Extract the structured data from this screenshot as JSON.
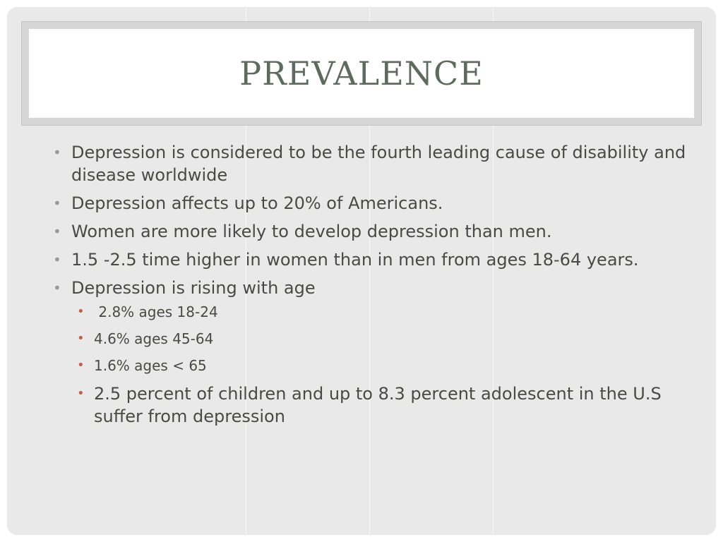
{
  "slide": {
    "title": "PREVALENCE",
    "bullets": [
      "Depression is considered to be the fourth leading cause of disability and disease worldwide",
      "Depression affects up to 20% of Americans.",
      "Women are more likely to develop depression than men.",
      "1.5 -2.5 time higher in women than in men from ages 18-64 years.",
      "Depression is rising with age"
    ],
    "sub_bullets": [
      " 2.8% ages 18-24",
      "4.6% ages 45-64",
      "1.6% ages < 65",
      "2.5 percent of children and up to 8.3 percent adolescent in the U.S suffer from depression"
    ]
  },
  "colors": {
    "title": "#5c6b5e",
    "body_text": "#4a4a44",
    "primary_bullet": "#9a9a9a",
    "secondary_bullet": "#c0604a",
    "slide_background": "#e9e9e9"
  }
}
